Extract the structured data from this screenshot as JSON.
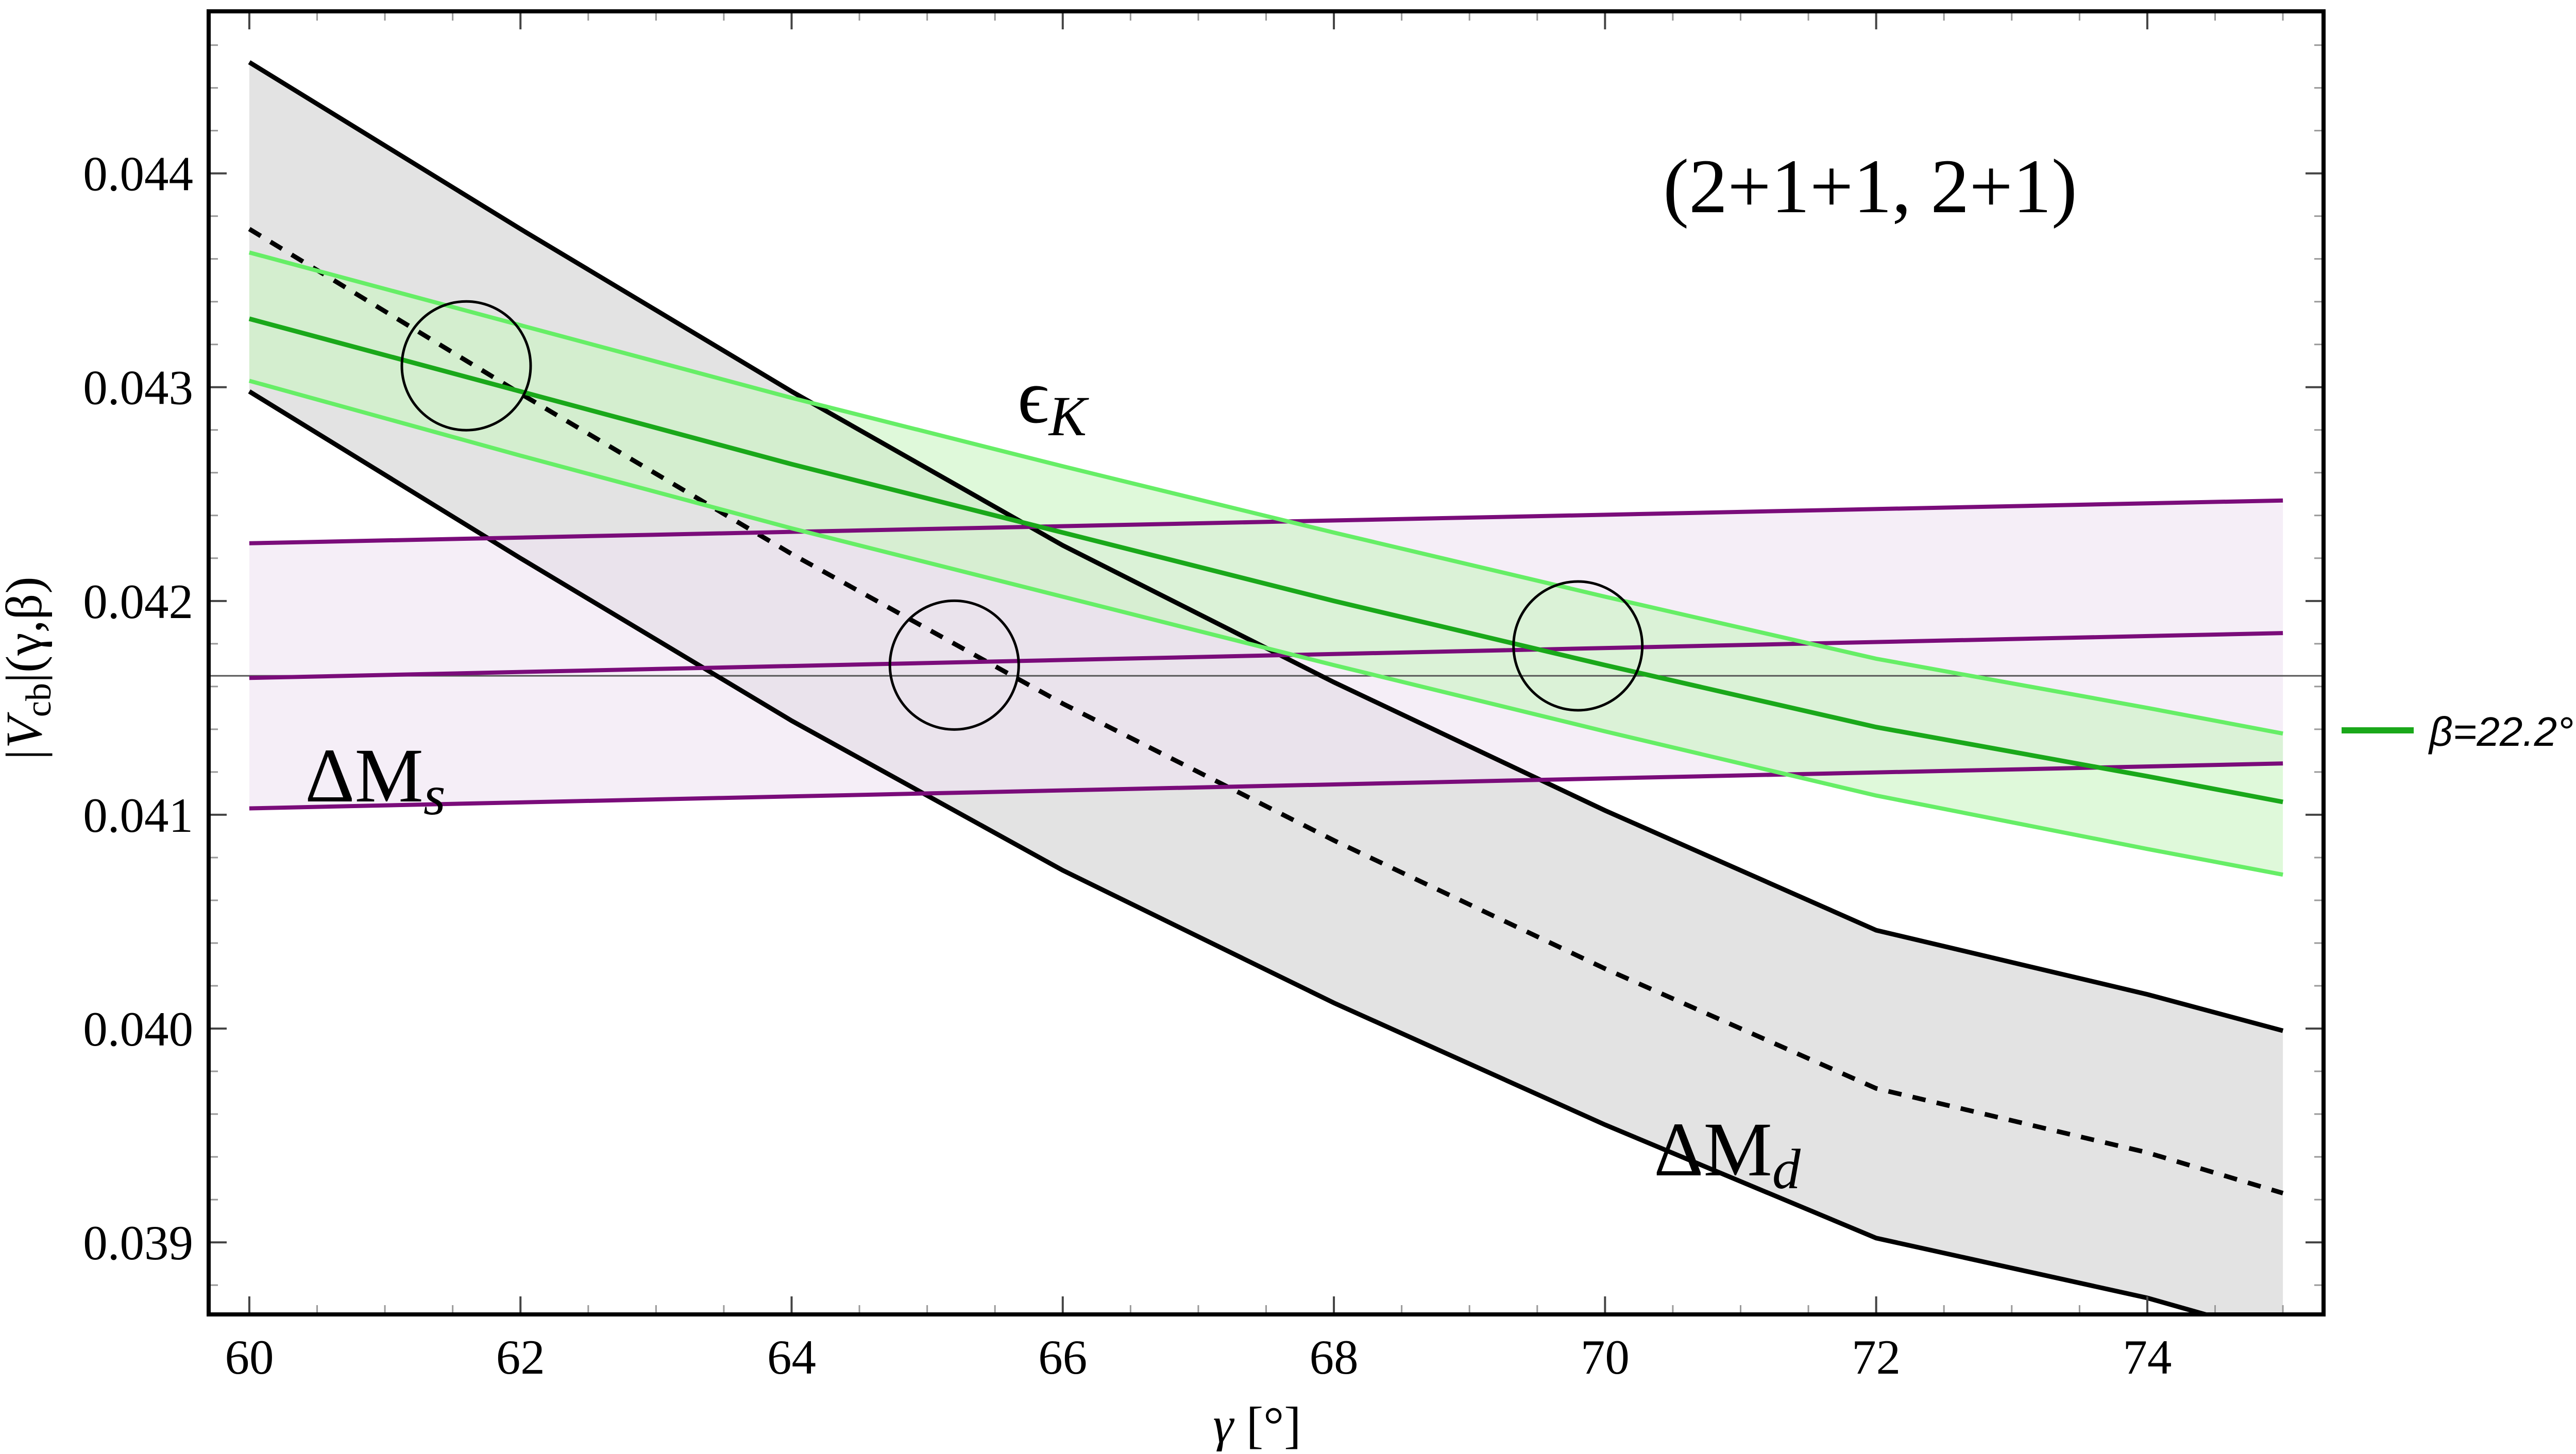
{
  "chart_data": {
    "type": "line",
    "annotation": "(2+1+1, 2+1)",
    "xlabel_var": "γ",
    "xlabel_unit": " [°]",
    "ylabel": "|V",
    "ylabel_sub": "cb",
    "ylabel_tail": "|(γ,β)",
    "xlim": [
      59.7,
      75.3
    ],
    "ylim": [
      38.663,
      44.758
    ],
    "x_ticks": [
      60,
      62,
      64,
      66,
      68,
      70,
      72,
      74
    ],
    "x_tick_labels": [
      "60",
      "62",
      "64",
      "66",
      "68",
      "70",
      "72",
      "74"
    ],
    "y_ticks": [
      39,
      40,
      41,
      42,
      43,
      44
    ],
    "y_tick_labels": [
      "0.039",
      "0.040",
      "0.041",
      "0.042",
      "0.043",
      "0.044"
    ],
    "y_scale_note": "values in units of 1e-3",
    "hline": 41.65,
    "legend": {
      "label": "β=22.2°",
      "color": "#1aa81a",
      "placement": "outside-right"
    },
    "labels": {
      "eps_main": "ϵ",
      "eps_sub": "K",
      "ms_main": "ΔM",
      "ms_sub": "s",
      "md_main": "ΔM",
      "md_sub": "d"
    },
    "bands": [
      {
        "id": "dMd",
        "name": "ΔM_d",
        "fill": "#e3e3e3",
        "line_color": "#000000",
        "x": [
          60,
          62,
          64,
          66,
          68,
          70,
          72,
          74,
          75
        ],
        "central": [
          43.74,
          42.97,
          42.22,
          41.52,
          40.88,
          40.28,
          39.72,
          39.42,
          39.23
        ],
        "upper": [
          44.52,
          43.74,
          42.98,
          42.26,
          41.62,
          41.02,
          40.46,
          40.16,
          39.99
        ],
        "lower": [
          42.98,
          42.2,
          41.44,
          40.74,
          40.12,
          39.55,
          39.02,
          38.74,
          38.56
        ]
      },
      {
        "id": "eK",
        "name": "ϵ_K",
        "fill": "#c9f5c1",
        "line_color": "#66ee66",
        "central_color": "#1aa81a",
        "x": [
          60,
          62,
          64,
          66,
          68,
          70,
          72,
          74,
          75
        ],
        "central": [
          43.32,
          42.98,
          42.64,
          42.32,
          42.0,
          41.7,
          41.41,
          41.18,
          41.06
        ],
        "upper": [
          43.63,
          43.29,
          42.95,
          42.63,
          42.32,
          42.02,
          41.73,
          41.5,
          41.38
        ],
        "lower": [
          43.03,
          42.68,
          42.34,
          42.02,
          41.7,
          41.39,
          41.09,
          40.84,
          40.72
        ]
      },
      {
        "id": "dMs",
        "name": "ΔM_s",
        "fill": "#efe2f1",
        "line_color": "#7a0c7a",
        "x": [
          60,
          75
        ],
        "central": [
          41.64,
          41.85
        ],
        "upper": [
          42.27,
          42.47
        ],
        "lower": [
          41.03,
          41.24
        ]
      }
    ],
    "circles": [
      {
        "x": 61.6,
        "y": 43.1
      },
      {
        "x": 65.2,
        "y": 41.7
      },
      {
        "x": 69.8,
        "y": 41.79
      }
    ]
  }
}
